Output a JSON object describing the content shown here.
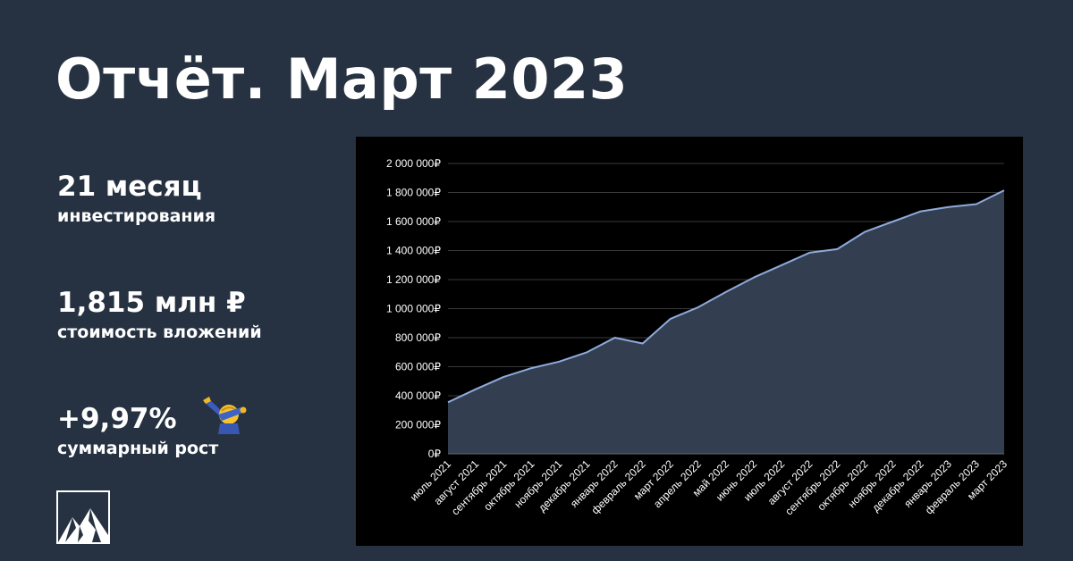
{
  "page": {
    "title": "Отчёт. Март 2023",
    "stats": [
      {
        "value": "21 месяц",
        "label": "инвестирования"
      },
      {
        "value": "1,815 млн ₽",
        "label": "стоимость вложений"
      },
      {
        "value": "+9,97%",
        "label": "суммарный рост"
      }
    ],
    "emoji_icon": "dabbing-face-icon",
    "logo_icon": "mountain-logo-icon"
  },
  "colors": {
    "background": "#263241",
    "chart_background": "#000000",
    "line": "#8faadc",
    "area": "#333f50",
    "grid": "#3a3a3a",
    "text": "#ffffff"
  },
  "chart_data": {
    "type": "area",
    "title": "",
    "xlabel": "",
    "ylabel": "",
    "categories": [
      "июль 2021",
      "август 2021",
      "сентябрь 2021",
      "октябрь 2021",
      "ноябрь 2021",
      "декабрь 2021",
      "январь 2022",
      "февраль 2022",
      "март 2022",
      "апрель 2022",
      "май 2022",
      "июнь 2022",
      "июль 2022",
      "август 2022",
      "сентябрь 2022",
      "октябрь 2022",
      "ноябрь 2022",
      "декабрь 2022",
      "январь 2023",
      "февраль 2023",
      "март 2023"
    ],
    "values": [
      355000,
      445000,
      530000,
      590000,
      635000,
      700000,
      800000,
      760000,
      930000,
      1010000,
      1115000,
      1215000,
      1300000,
      1385000,
      1410000,
      1530000,
      1600000,
      1670000,
      1700000,
      1720000,
      1815000
    ],
    "ylim": [
      0,
      2000000
    ],
    "yticks": [
      0,
      200000,
      400000,
      600000,
      800000,
      1000000,
      1200000,
      1400000,
      1600000,
      1800000,
      2000000
    ],
    "ytick_labels": [
      "0₽",
      "200 000₽",
      "400 000₽",
      "600 000₽",
      "800 000₽",
      "1 000 000₽",
      "1 200 000₽",
      "1 400 000₽",
      "1 600 000₽",
      "1 800 000₽",
      "2 000 000₽"
    ],
    "grid": true,
    "legend": false
  }
}
